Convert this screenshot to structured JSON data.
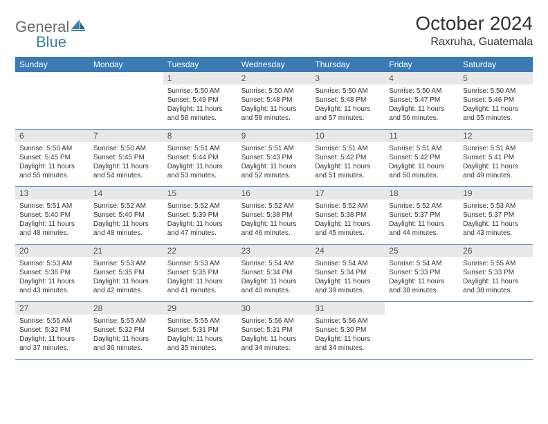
{
  "header": {
    "logo_part1": "General",
    "logo_part2": "Blue",
    "month_title": "October 2024",
    "location": "Raxruha, Guatemala"
  },
  "colors": {
    "accent": "#3a7ab5",
    "daynum_bg": "#e8e8e8",
    "text": "#333333",
    "logo_gray": "#6b6b6b"
  },
  "weekdays": [
    "Sunday",
    "Monday",
    "Tuesday",
    "Wednesday",
    "Thursday",
    "Friday",
    "Saturday"
  ],
  "weeks": [
    [
      {
        "empty": true
      },
      {
        "empty": true
      },
      {
        "num": "1",
        "sunrise": "Sunrise: 5:50 AM",
        "sunset": "Sunset: 5:49 PM",
        "day1": "Daylight: 11 hours",
        "day2": "and 58 minutes."
      },
      {
        "num": "2",
        "sunrise": "Sunrise: 5:50 AM",
        "sunset": "Sunset: 5:48 PM",
        "day1": "Daylight: 11 hours",
        "day2": "and 58 minutes."
      },
      {
        "num": "3",
        "sunrise": "Sunrise: 5:50 AM",
        "sunset": "Sunset: 5:48 PM",
        "day1": "Daylight: 11 hours",
        "day2": "and 57 minutes."
      },
      {
        "num": "4",
        "sunrise": "Sunrise: 5:50 AM",
        "sunset": "Sunset: 5:47 PM",
        "day1": "Daylight: 11 hours",
        "day2": "and 56 minutes."
      },
      {
        "num": "5",
        "sunrise": "Sunrise: 5:50 AM",
        "sunset": "Sunset: 5:46 PM",
        "day1": "Daylight: 11 hours",
        "day2": "and 55 minutes."
      }
    ],
    [
      {
        "num": "6",
        "sunrise": "Sunrise: 5:50 AM",
        "sunset": "Sunset: 5:45 PM",
        "day1": "Daylight: 11 hours",
        "day2": "and 55 minutes."
      },
      {
        "num": "7",
        "sunrise": "Sunrise: 5:50 AM",
        "sunset": "Sunset: 5:45 PM",
        "day1": "Daylight: 11 hours",
        "day2": "and 54 minutes."
      },
      {
        "num": "8",
        "sunrise": "Sunrise: 5:51 AM",
        "sunset": "Sunset: 5:44 PM",
        "day1": "Daylight: 11 hours",
        "day2": "and 53 minutes."
      },
      {
        "num": "9",
        "sunrise": "Sunrise: 5:51 AM",
        "sunset": "Sunset: 5:43 PM",
        "day1": "Daylight: 11 hours",
        "day2": "and 52 minutes."
      },
      {
        "num": "10",
        "sunrise": "Sunrise: 5:51 AM",
        "sunset": "Sunset: 5:42 PM",
        "day1": "Daylight: 11 hours",
        "day2": "and 51 minutes."
      },
      {
        "num": "11",
        "sunrise": "Sunrise: 5:51 AM",
        "sunset": "Sunset: 5:42 PM",
        "day1": "Daylight: 11 hours",
        "day2": "and 50 minutes."
      },
      {
        "num": "12",
        "sunrise": "Sunrise: 5:51 AM",
        "sunset": "Sunset: 5:41 PM",
        "day1": "Daylight: 11 hours",
        "day2": "and 49 minutes."
      }
    ],
    [
      {
        "num": "13",
        "sunrise": "Sunrise: 5:51 AM",
        "sunset": "Sunset: 5:40 PM",
        "day1": "Daylight: 11 hours",
        "day2": "and 48 minutes."
      },
      {
        "num": "14",
        "sunrise": "Sunrise: 5:52 AM",
        "sunset": "Sunset: 5:40 PM",
        "day1": "Daylight: 11 hours",
        "day2": "and 48 minutes."
      },
      {
        "num": "15",
        "sunrise": "Sunrise: 5:52 AM",
        "sunset": "Sunset: 5:39 PM",
        "day1": "Daylight: 11 hours",
        "day2": "and 47 minutes."
      },
      {
        "num": "16",
        "sunrise": "Sunrise: 5:52 AM",
        "sunset": "Sunset: 5:38 PM",
        "day1": "Daylight: 11 hours",
        "day2": "and 46 minutes."
      },
      {
        "num": "17",
        "sunrise": "Sunrise: 5:52 AM",
        "sunset": "Sunset: 5:38 PM",
        "day1": "Daylight: 11 hours",
        "day2": "and 45 minutes."
      },
      {
        "num": "18",
        "sunrise": "Sunrise: 5:52 AM",
        "sunset": "Sunset: 5:37 PM",
        "day1": "Daylight: 11 hours",
        "day2": "and 44 minutes."
      },
      {
        "num": "19",
        "sunrise": "Sunrise: 5:53 AM",
        "sunset": "Sunset: 5:37 PM",
        "day1": "Daylight: 11 hours",
        "day2": "and 43 minutes."
      }
    ],
    [
      {
        "num": "20",
        "sunrise": "Sunrise: 5:53 AM",
        "sunset": "Sunset: 5:36 PM",
        "day1": "Daylight: 11 hours",
        "day2": "and 43 minutes."
      },
      {
        "num": "21",
        "sunrise": "Sunrise: 5:53 AM",
        "sunset": "Sunset: 5:35 PM",
        "day1": "Daylight: 11 hours",
        "day2": "and 42 minutes."
      },
      {
        "num": "22",
        "sunrise": "Sunrise: 5:53 AM",
        "sunset": "Sunset: 5:35 PM",
        "day1": "Daylight: 11 hours",
        "day2": "and 41 minutes."
      },
      {
        "num": "23",
        "sunrise": "Sunrise: 5:54 AM",
        "sunset": "Sunset: 5:34 PM",
        "day1": "Daylight: 11 hours",
        "day2": "and 40 minutes."
      },
      {
        "num": "24",
        "sunrise": "Sunrise: 5:54 AM",
        "sunset": "Sunset: 5:34 PM",
        "day1": "Daylight: 11 hours",
        "day2": "and 39 minutes."
      },
      {
        "num": "25",
        "sunrise": "Sunrise: 5:54 AM",
        "sunset": "Sunset: 5:33 PM",
        "day1": "Daylight: 11 hours",
        "day2": "and 38 minutes."
      },
      {
        "num": "26",
        "sunrise": "Sunrise: 5:55 AM",
        "sunset": "Sunset: 5:33 PM",
        "day1": "Daylight: 11 hours",
        "day2": "and 38 minutes."
      }
    ],
    [
      {
        "num": "27",
        "sunrise": "Sunrise: 5:55 AM",
        "sunset": "Sunset: 5:32 PM",
        "day1": "Daylight: 11 hours",
        "day2": "and 37 minutes."
      },
      {
        "num": "28",
        "sunrise": "Sunrise: 5:55 AM",
        "sunset": "Sunset: 5:32 PM",
        "day1": "Daylight: 11 hours",
        "day2": "and 36 minutes."
      },
      {
        "num": "29",
        "sunrise": "Sunrise: 5:55 AM",
        "sunset": "Sunset: 5:31 PM",
        "day1": "Daylight: 11 hours",
        "day2": "and 35 minutes."
      },
      {
        "num": "30",
        "sunrise": "Sunrise: 5:56 AM",
        "sunset": "Sunset: 5:31 PM",
        "day1": "Daylight: 11 hours",
        "day2": "and 34 minutes."
      },
      {
        "num": "31",
        "sunrise": "Sunrise: 5:56 AM",
        "sunset": "Sunset: 5:30 PM",
        "day1": "Daylight: 11 hours",
        "day2": "and 34 minutes."
      },
      {
        "empty": true
      },
      {
        "empty": true
      }
    ]
  ]
}
